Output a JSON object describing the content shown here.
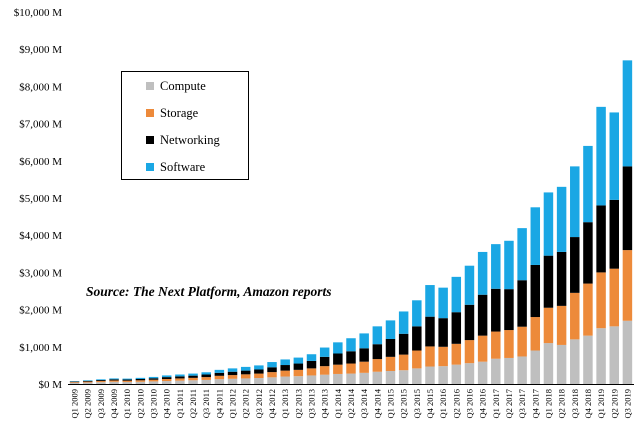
{
  "chart_data": {
    "type": "bar",
    "stacked": true,
    "title": "",
    "xlabel": "",
    "ylabel": "",
    "ylim": [
      0,
      10000
    ],
    "yticks": [
      "$0 M",
      "$1,000 M",
      "$2,000 M",
      "$3,000 M",
      "$4,000 M",
      "$5,000 M",
      "$6,000 M",
      "$7,000 M",
      "$8,000 M",
      "$9,000 M",
      "$10,000 M"
    ],
    "grid": false,
    "legend_position": "top-left",
    "annotation": "Source: The Next Platform, Amazon reports",
    "categories": [
      "Q1 2009",
      "Q2 2009",
      "Q3 2009",
      "Q4 2009",
      "Q1 2010",
      "Q2 2010",
      "Q3 2010",
      "Q4 2010",
      "Q1 2011",
      "Q2 2011",
      "Q3 2011",
      "Q4 2011",
      "Q1 2012",
      "Q2 2012",
      "Q3 2012",
      "Q4 2012",
      "Q1 2013",
      "Q2 2013",
      "Q3 2013",
      "Q4 2013",
      "Q1 2014",
      "Q2 2014",
      "Q3 2014",
      "Q4 2014",
      "Q1 2015",
      "Q2 2015",
      "Q3 2015",
      "Q4 2015",
      "Q1 2016",
      "Q2 2016",
      "Q3 2016",
      "Q4 2016",
      "Q1 2017",
      "Q2 2017",
      "Q3 2017",
      "Q4 2017",
      "Q1 2018",
      "Q2 2018",
      "Q3 2018",
      "Q4 2018",
      "Q1 2019",
      "Q2 2019",
      "Q3 2019"
    ],
    "series": [
      {
        "name": "Compute",
        "color": "#bfbfbf",
        "values": [
          30,
          40,
          50,
          60,
          55,
          60,
          70,
          80,
          90,
          100,
          110,
          130,
          140,
          150,
          160,
          180,
          200,
          210,
          230,
          250,
          270,
          280,
          300,
          330,
          350,
          370,
          420,
          470,
          480,
          520,
          560,
          600,
          680,
          700,
          740,
          900,
          1100,
          1050,
          1200,
          1300,
          1500,
          1550,
          1700
        ]
      },
      {
        "name": "Storage",
        "color": "#ed8a3a",
        "values": [
          20,
          25,
          30,
          35,
          35,
          40,
          45,
          55,
          60,
          65,
          75,
          90,
          100,
          110,
          120,
          140,
          160,
          170,
          190,
          230,
          250,
          270,
          300,
          340,
          380,
          420,
          480,
          540,
          520,
          560,
          620,
          700,
          730,
          750,
          800,
          900,
          950,
          1050,
          1250,
          1400,
          1500,
          1550,
          1900
        ]
      },
      {
        "name": "Networking",
        "color": "#000000",
        "values": [
          15,
          20,
          25,
          30,
          30,
          35,
          40,
          50,
          55,
          60,
          70,
          80,
          90,
          100,
          110,
          130,
          150,
          170,
          200,
          250,
          300,
          330,
          360,
          400,
          480,
          560,
          650,
          800,
          770,
          850,
          950,
          1100,
          1150,
          1100,
          1250,
          1400,
          1400,
          1450,
          1500,
          1650,
          1800,
          1850,
          2250
        ]
      },
      {
        "name": "Software",
        "color": "#1aa7e4",
        "values": [
          10,
          15,
          20,
          25,
          25,
          30,
          35,
          45,
          50,
          55,
          60,
          80,
          90,
          100,
          110,
          140,
          150,
          160,
          180,
          250,
          300,
          350,
          400,
          480,
          500,
          600,
          700,
          850,
          820,
          950,
          1050,
          1150,
          1200,
          1300,
          1400,
          1550,
          1700,
          1750,
          1900,
          2050,
          2650,
          2350,
          2850
        ]
      }
    ]
  }
}
